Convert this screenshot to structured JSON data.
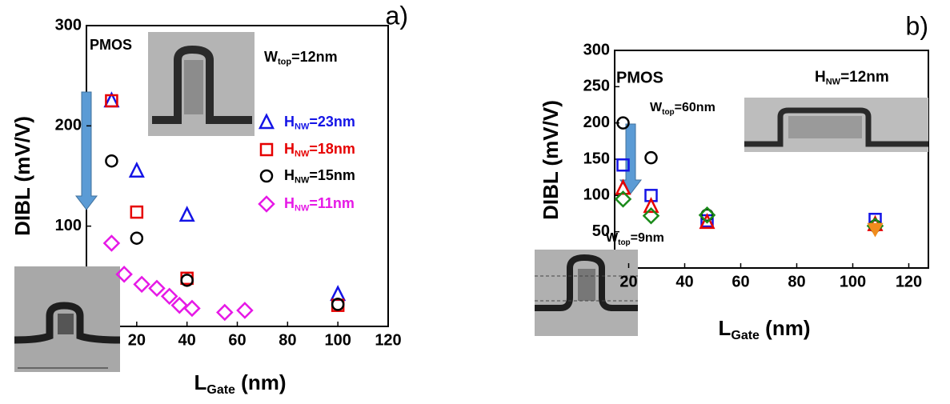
{
  "chart_data": [
    {
      "type": "scatter",
      "panel_label": "a)",
      "x_label": {
        "main": "L",
        "sub": "Gate",
        "rest": " (nm)"
      },
      "y_label": "DIBL (mV/V)",
      "xlim": [
        0,
        120
      ],
      "xticks": [
        20,
        40,
        60,
        80,
        100,
        120
      ],
      "ylim": [
        0,
        300
      ],
      "yticks": [
        100,
        200,
        300
      ],
      "annotations": [
        {
          "text": "PMOS"
        },
        {
          "main": "W",
          "sub": "top",
          "rest": "=12nm"
        }
      ],
      "series": [
        {
          "name": {
            "main": "H",
            "sub": "NW",
            "rest": "=23nm"
          },
          "color": "#1414e6",
          "marker": "triangle",
          "x": [
            10,
            20,
            40,
            100
          ],
          "values": [
            225,
            155,
            111,
            32
          ]
        },
        {
          "name": {
            "main": "H",
            "sub": "NW",
            "rest": "=18nm"
          },
          "color": "#e60000",
          "marker": "square",
          "x": [
            10,
            20,
            40,
            100
          ],
          "values": [
            225,
            114,
            48,
            21
          ]
        },
        {
          "name": {
            "main": "H",
            "sub": "NW",
            "rest": "=15nm"
          },
          "color": "#000000",
          "marker": "circle",
          "x": [
            10,
            20,
            40,
            100
          ],
          "values": [
            165,
            88,
            46,
            22
          ]
        },
        {
          "name": {
            "main": "H",
            "sub": "NW",
            "rest": "=11nm"
          },
          "color": "#e619e6",
          "marker": "diamond",
          "x": [
            10,
            15,
            22,
            28,
            33,
            37,
            42,
            55,
            63
          ],
          "values": [
            83,
            52,
            42,
            38,
            30,
            21,
            18,
            14,
            16
          ]
        }
      ]
    },
    {
      "type": "scatter",
      "panel_label": "b)",
      "x_label": {
        "main": "L",
        "sub": "Gate",
        "rest": " (nm)"
      },
      "y_label": "DIBL (mV/V)",
      "xlim": [
        15,
        127
      ],
      "xticks": [
        20,
        40,
        60,
        80,
        100,
        120
      ],
      "ylim": [
        0,
        300
      ],
      "yticks": [
        50,
        100,
        150,
        200,
        250,
        300
      ],
      "annotations": [
        {
          "text": "PMOS"
        },
        {
          "main": "H",
          "sub": "NW",
          "rest": "=12nm"
        },
        {
          "main": "W",
          "sub": "top",
          "rest": "=60nm"
        },
        {
          "main": "W",
          "sub": "top",
          "rest": "=9nm"
        }
      ],
      "series": [
        {
          "color": "#1414e6",
          "marker": "square",
          "x": [
            18,
            28,
            48,
            108
          ],
          "values": [
            142,
            100,
            65,
            67
          ]
        },
        {
          "color": "#000000",
          "marker": "circle",
          "x": [
            18,
            28,
            48,
            108
          ],
          "values": [
            200,
            152,
            73,
            58
          ]
        },
        {
          "color": "#e60000",
          "marker": "triangle",
          "x": [
            18,
            28,
            48,
            108
          ],
          "values": [
            110,
            85,
            63,
            60
          ]
        },
        {
          "color": "#1a8a1a",
          "marker": "diamond",
          "x": [
            18,
            28,
            48,
            108
          ],
          "values": [
            95,
            72,
            73,
            58
          ]
        },
        {
          "color": "#f08c1e",
          "marker": "triangle-down",
          "x": [
            108
          ],
          "values": [
            54
          ]
        }
      ]
    }
  ]
}
